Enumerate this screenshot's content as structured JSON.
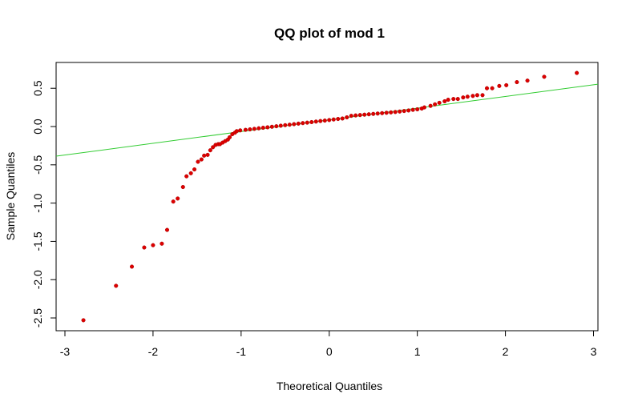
{
  "chart_data": {
    "type": "scatter",
    "title": "QQ plot of mod 1",
    "xlabel": "Theoretical Quantiles",
    "ylabel": "Sample Quantiles",
    "xlim": [
      -3.1,
      3.05
    ],
    "ylim": [
      -2.667,
      0.837
    ],
    "xticks": [
      -3,
      -2,
      -1,
      0,
      1,
      2,
      3
    ],
    "yticks": [
      -2.5,
      {
        "value": -2,
        "label": "-2.0"
      },
      -1.5,
      {
        "value": -1,
        "label": "-1.0"
      },
      -0.5,
      {
        "value": 0,
        "label": "0.0"
      },
      0.5
    ],
    "color": "#dd0000",
    "line": {
      "intercept": 0.087,
      "slope": 0.153,
      "color": "#33cc33"
    },
    "x": [
      -2.79,
      -2.42,
      -2.24,
      -2.1,
      -2.0,
      -1.9,
      -1.84,
      -1.77,
      -1.72,
      -1.66,
      -1.62,
      -1.57,
      -1.53,
      -1.49,
      -1.45,
      -1.42,
      -1.38,
      -1.35,
      -1.32,
      -1.29,
      -1.26,
      -1.24,
      -1.21,
      -1.18,
      -1.15,
      -1.13,
      -1.1,
      -1.07,
      -1.05,
      -1.01,
      -0.95,
      -0.9,
      -0.85,
      -0.8,
      -0.75,
      -0.7,
      -0.65,
      -0.6,
      -0.55,
      -0.5,
      -0.45,
      -0.4,
      -0.35,
      -0.3,
      -0.25,
      -0.2,
      -0.15,
      -0.1,
      -0.05,
      0,
      0.05,
      0.1,
      0.15,
      0.2,
      0.25,
      0.3,
      0.35,
      0.4,
      0.45,
      0.5,
      0.55,
      0.6,
      0.65,
      0.7,
      0.75,
      0.8,
      0.85,
      0.9,
      0.95,
      1.0,
      1.05,
      1.08,
      1.15,
      1.2,
      1.25,
      1.31,
      1.35,
      1.41,
      1.46,
      1.52,
      1.57,
      1.63,
      1.68,
      1.74,
      1.79,
      1.85,
      1.93,
      2.01,
      2.13,
      2.25,
      2.44,
      2.81
    ],
    "y": [
      -2.53,
      -2.08,
      -1.83,
      -1.58,
      -1.55,
      -1.53,
      -1.35,
      -0.98,
      -0.94,
      -0.79,
      -0.65,
      -0.61,
      -0.56,
      -0.46,
      -0.43,
      -0.38,
      -0.37,
      -0.31,
      -0.27,
      -0.24,
      -0.23,
      -0.23,
      -0.21,
      -0.19,
      -0.17,
      -0.14,
      -0.1,
      -0.08,
      -0.06,
      -0.05,
      -0.043,
      -0.037,
      -0.03,
      -0.023,
      -0.016,
      -0.01,
      -0.003,
      0.004,
      0.011,
      0.018,
      0.024,
      0.031,
      0.038,
      0.045,
      0.051,
      0.058,
      0.065,
      0.072,
      0.078,
      0.085,
      0.092,
      0.099,
      0.105,
      0.12,
      0.14,
      0.145,
      0.15,
      0.155,
      0.16,
      0.165,
      0.17,
      0.175,
      0.18,
      0.185,
      0.19,
      0.196,
      0.203,
      0.21,
      0.218,
      0.225,
      0.235,
      0.25,
      0.27,
      0.29,
      0.31,
      0.33,
      0.35,
      0.36,
      0.36,
      0.38,
      0.39,
      0.4,
      0.41,
      0.41,
      0.5,
      0.5,
      0.53,
      0.54,
      0.58,
      0.6,
      0.65,
      0.7
    ]
  }
}
